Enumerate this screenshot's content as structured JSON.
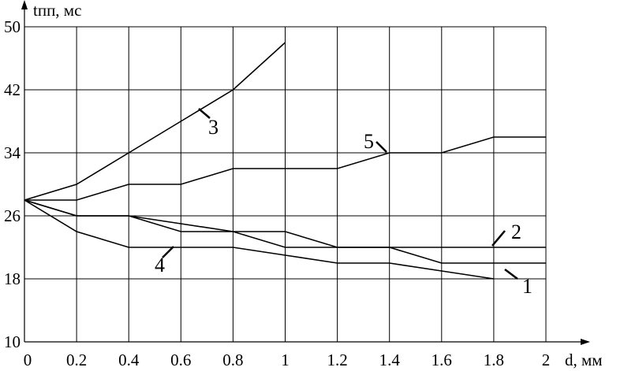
{
  "chart_data": {
    "type": "line",
    "y_label": "tпп, мс",
    "x_label": "d, мм",
    "x": [
      0,
      0.2,
      0.4,
      0.6,
      0.8,
      1,
      1.2,
      1.4,
      1.6,
      1.8,
      2
    ],
    "xlim": [
      0,
      2
    ],
    "xticks": [
      0,
      0.2,
      0.4,
      0.6,
      0.8,
      1,
      1.2,
      1.4,
      1.6,
      1.8,
      2
    ],
    "ylim": [
      10,
      50
    ],
    "yticks": [
      10,
      18,
      26,
      34,
      42,
      50
    ],
    "grid": true,
    "series": [
      {
        "name": "1",
        "color": "#000000",
        "values": [
          28,
          26,
          26,
          25,
          24,
          22,
          22,
          22,
          20,
          20,
          20
        ]
      },
      {
        "name": "2",
        "color": "#000000",
        "values": [
          28,
          26,
          26,
          24,
          24,
          24,
          22,
          22,
          22,
          22,
          22
        ]
      },
      {
        "name": "3",
        "color": "#000000",
        "values": [
          28,
          30,
          34,
          38,
          42,
          48,
          null,
          null,
          null,
          null,
          null
        ]
      },
      {
        "name": "4",
        "color": "#000000",
        "values": [
          28,
          24,
          22,
          22,
          22,
          21,
          20,
          20,
          19,
          18,
          null
        ]
      },
      {
        "name": "5",
        "color": "#000000",
        "values": [
          28,
          28,
          30,
          30,
          32,
          32,
          32,
          34,
          34,
          36,
          36
        ]
      }
    ]
  }
}
